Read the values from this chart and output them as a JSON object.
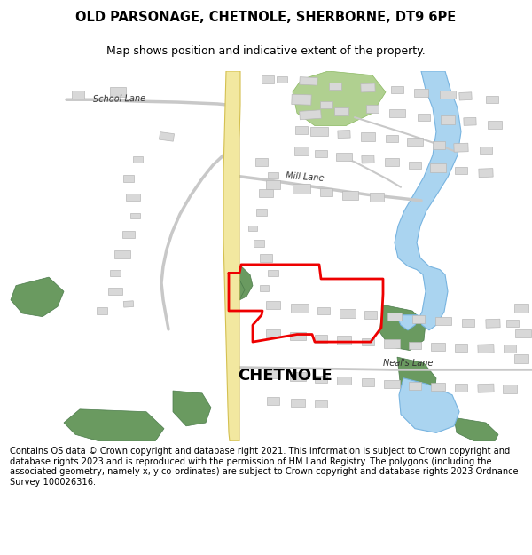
{
  "title": "OLD PARSONAGE, CHETNOLE, SHERBORNE, DT9 6PE",
  "subtitle": "Map shows position and indicative extent of the property.",
  "copyright_text": "Contains OS data © Crown copyright and database right 2021. This information is subject to Crown copyright and database rights 2023 and is reproduced with the permission of HM Land Registry. The polygons (including the associated geometry, namely x, y co-ordinates) are subject to Crown copyright and database rights 2023 Ordnance Survey 100026316.",
  "map_bg": "#f7f7f7",
  "road_main_color": "#f2e8a0",
  "road_main_edge": "#d4c050",
  "building_fill": "#d8d8d8",
  "building_edge": "#b8b8b8",
  "green_dark": "#6a9a60",
  "green_light": "#b0d090",
  "water_fill": "#aad4f0",
  "water_edge": "#78b4e0",
  "plot_color": "#ee0000",
  "plot_lw": 2.0,
  "road_minor": "#cccccc",
  "road_minor_lw": 1.8
}
